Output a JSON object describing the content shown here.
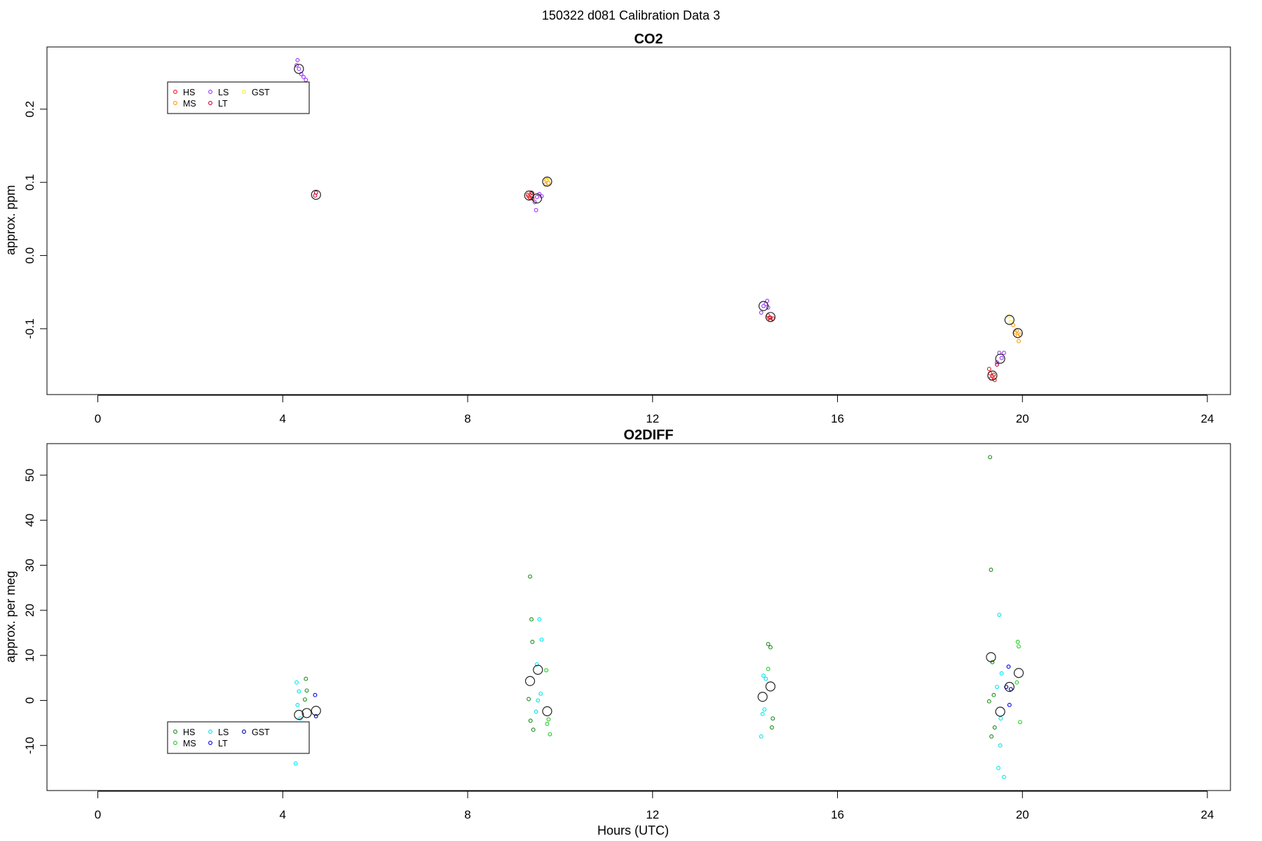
{
  "figure": {
    "title": "150322   d081   Calibration Data 3"
  },
  "chart_data": [
    {
      "type": "scatter",
      "title": "CO2",
      "xlabel": "",
      "ylabel": "approx. ppm",
      "xlim": [
        -1.1,
        24.5
      ],
      "ylim": [
        -0.19,
        0.285
      ],
      "xticks": [
        0,
        4,
        8,
        12,
        16,
        20,
        24
      ],
      "yticks": [
        -0.1,
        0.0,
        0.1,
        0.2
      ],
      "ytick_labels": [
        "-0.1",
        "0.0",
        "0.1",
        "0.2"
      ],
      "grid": false,
      "legend": {
        "position": "top-left",
        "entries": [
          {
            "name": "HS",
            "color": "#e41a1c"
          },
          {
            "name": "MS",
            "color": "#ff9900"
          },
          {
            "name": "LS",
            "color": "#9933ff"
          },
          {
            "name": "LT",
            "color": "#cc0033"
          },
          {
            "name": "GST",
            "color": "#ffee33"
          }
        ]
      },
      "series": [
        {
          "name": "HS",
          "color": "#e41a1c",
          "x": [
            9.3,
            9.35,
            9.4,
            9.32,
            14.5,
            14.55,
            14.52,
            14.6,
            19.3,
            19.35,
            19.32,
            19.38,
            19.28,
            19.4
          ],
          "y": [
            0.083,
            0.079,
            0.085,
            0.081,
            -0.082,
            -0.088,
            -0.085,
            -0.086,
            -0.161,
            -0.165,
            -0.168,
            -0.163,
            -0.155,
            -0.17
          ]
        },
        {
          "name": "MS",
          "color": "#ff9900",
          "x": [
            9.7,
            9.75,
            9.68,
            19.85,
            19.9,
            19.88,
            19.8,
            19.92,
            19.95
          ],
          "y": [
            0.103,
            0.099,
            0.097,
            -0.105,
            -0.11,
            -0.103,
            -0.095,
            -0.117,
            -0.108
          ]
        },
        {
          "name": "LS",
          "color": "#9933ff",
          "x": [
            4.3,
            4.35,
            4.4,
            4.45,
            4.5,
            4.32,
            9.5,
            9.55,
            9.45,
            9.6,
            9.48,
            14.4,
            14.45,
            14.48,
            14.35,
            14.5,
            19.5,
            19.55,
            19.45,
            19.6
          ],
          "y": [
            0.26,
            0.255,
            0.248,
            0.244,
            0.24,
            0.267,
            0.08,
            0.084,
            0.073,
            0.081,
            0.062,
            -0.069,
            -0.066,
            -0.062,
            -0.078,
            -0.071,
            -0.133,
            -0.14,
            -0.146,
            -0.133
          ]
        },
        {
          "name": "LT",
          "color": "#cc0033",
          "x": [
            4.7,
            4.72,
            9.4,
            9.38,
            14.55,
            19.45
          ],
          "y": [
            0.082,
            0.086,
            0.078,
            0.086,
            -0.085,
            -0.149
          ]
        },
        {
          "name": "GST",
          "color": "#ffee33",
          "x": [
            9.72,
            19.7,
            19.75
          ],
          "y": [
            0.104,
            -0.083,
            -0.091
          ]
        }
      ],
      "means": {
        "x": [
          4.35,
          4.72,
          9.33,
          9.5,
          9.72,
          14.4,
          14.55,
          19.35,
          19.52,
          19.72,
          19.9
        ],
        "y": [
          0.255,
          0.083,
          0.082,
          0.078,
          0.101,
          -0.069,
          -0.084,
          -0.164,
          -0.141,
          -0.088,
          -0.106
        ]
      }
    },
    {
      "type": "scatter",
      "title": "O2DIFF",
      "xlabel": "Hours (UTC)",
      "ylabel": "approx. per meg",
      "xlim": [
        -1.1,
        24.5
      ],
      "ylim": [
        -20,
        57
      ],
      "xticks": [
        0,
        4,
        8,
        12,
        16,
        20,
        24
      ],
      "yticks": [
        -10,
        0,
        10,
        20,
        30,
        40,
        50
      ],
      "ytick_labels": [
        "-10",
        "0",
        "10",
        "20",
        "30",
        "40",
        "50"
      ],
      "grid": false,
      "legend": {
        "position": "bottom-left",
        "entries": [
          {
            "name": "HS",
            "color": "#1a8a1a"
          },
          {
            "name": "MS",
            "color": "#22cc22"
          },
          {
            "name": "LS",
            "color": "#00e5ee"
          },
          {
            "name": "LT",
            "color": "#0000ee"
          },
          {
            "name": "GST",
            "color": "#000099"
          }
        ]
      },
      "series": [
        {
          "name": "HS",
          "color": "#1a8a1a",
          "x": [
            4.5,
            4.52,
            4.48,
            9.35,
            9.38,
            9.4,
            9.32,
            9.36,
            9.42,
            14.5,
            14.55,
            14.6,
            14.58,
            19.3,
            19.32,
            19.35,
            19.38,
            19.28,
            19.4,
            19.33
          ],
          "y": [
            4.8,
            2.2,
            0.2,
            27.5,
            18,
            13,
            0.3,
            -4.5,
            -6.5,
            12.5,
            11.8,
            -4,
            -6,
            54,
            29,
            8.5,
            1.2,
            -0.2,
            -6,
            -8
          ]
        },
        {
          "name": "MS",
          "color": "#22cc22",
          "x": [
            9.7,
            9.75,
            9.72,
            9.78,
            14.5,
            19.9,
            19.92,
            19.88,
            19.95
          ],
          "y": [
            6.7,
            -4.2,
            -5.2,
            -7.5,
            7,
            13,
            12,
            4,
            -4.8
          ]
        },
        {
          "name": "LS",
          "color": "#00e5ee",
          "x": [
            4.3,
            4.35,
            4.32,
            4.38,
            4.3,
            4.28,
            9.55,
            9.6,
            9.5,
            9.58,
            9.52,
            9.48,
            14.4,
            14.45,
            14.35,
            14.42,
            14.38,
            19.5,
            19.55,
            19.52,
            19.48,
            19.6,
            19.45,
            19.53
          ],
          "y": [
            4,
            2,
            -1,
            -4,
            -11,
            -14,
            18,
            13.5,
            8,
            1.5,
            0,
            -2.5,
            5.5,
            4.8,
            -8,
            -2,
            -3,
            19,
            6,
            -10,
            -15,
            -17,
            3,
            -4
          ]
        },
        {
          "name": "LT",
          "color": "#0000ee",
          "x": [
            4.7,
            19.7,
            19.72
          ],
          "y": [
            1.2,
            7.5,
            -1
          ]
        },
        {
          "name": "GST",
          "color": "#000099",
          "x": [
            4.72,
            19.65,
            19.75
          ],
          "y": [
            -3.5,
            3,
            2.5
          ]
        }
      ],
      "means": {
        "x": [
          4.35,
          4.52,
          4.72,
          9.35,
          9.52,
          9.72,
          14.38,
          14.55,
          19.32,
          19.52,
          19.72,
          19.92
        ],
        "y": [
          -3.2,
          -2.8,
          -2.3,
          4.3,
          6.8,
          -2.4,
          0.8,
          3.1,
          9.6,
          -2.5,
          3,
          6.1
        ]
      }
    }
  ]
}
